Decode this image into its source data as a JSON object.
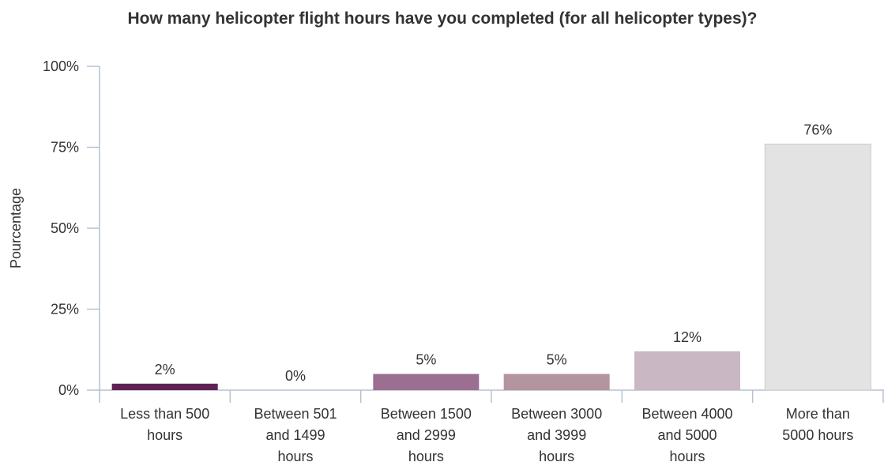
{
  "chart_data": {
    "type": "bar",
    "title": "How many helicopter flight hours have you completed (for all helicopter types)?",
    "xlabel": "",
    "ylabel": "Pourcentage",
    "ylim": [
      0,
      100
    ],
    "y_ticks": [
      0,
      25,
      50,
      75,
      100
    ],
    "y_tick_labels": [
      "0%",
      "25%",
      "50%",
      "75%",
      "100%"
    ],
    "grid": false,
    "legend": "none",
    "categories": [
      "Less than 500 hours",
      "Between 501 and 1499 hours",
      "Between 1500 and 2999 hours",
      "Between 3000 and 3999 hours",
      "Between 4000 and 5000 hours",
      "More than 5000 hours"
    ],
    "category_label_lines": [
      [
        "Less than 500",
        "hours"
      ],
      [
        "Between 501",
        "and 1499",
        "hours"
      ],
      [
        "Between 1500",
        "and 2999",
        "hours"
      ],
      [
        "Between 3000",
        "and 3999",
        "hours"
      ],
      [
        "Between 4000",
        "and 5000",
        "hours"
      ],
      [
        "More than",
        "5000 hours"
      ]
    ],
    "values": [
      2,
      0,
      5,
      5,
      12,
      76
    ],
    "value_labels": [
      "2%",
      "0%",
      "5%",
      "5%",
      "12%",
      "76%"
    ],
    "colors": [
      "#5e2354",
      "#7b4570",
      "#9a6f91",
      "#b3949f",
      "#c9b7c3",
      "#e3e3e3"
    ],
    "axis_color": "#b7c1d3",
    "bar_border_color": "#cccccc",
    "text_color": "#333333"
  }
}
